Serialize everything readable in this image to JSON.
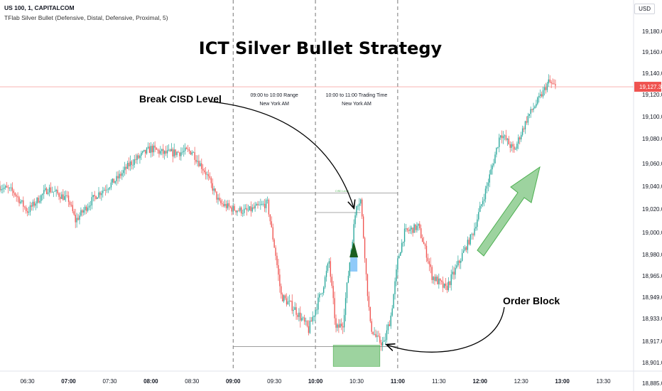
{
  "header": {
    "symbol_line": "US 100, 1, CAPITALCOM",
    "indicator_line": "TFlab Silver Bullet (Defensive, Distal, Defensive, Proximal, 5)"
  },
  "currency_button": "USD",
  "chart_data": {
    "type": "candlestick",
    "title": "ICT Silver Bullet Strategy",
    "x_ticks": [
      "06:30",
      "07:00",
      "07:30",
      "08:00",
      "08:30",
      "09:00",
      "09:30",
      "10:00",
      "10:30",
      "11:00",
      "11:30",
      "12:00",
      "12:30",
      "13:00",
      "13:30"
    ],
    "x_bold_ticks": [
      "07:00",
      "08:00",
      "09:00",
      "10:00",
      "11:00",
      "12:00",
      "13:00"
    ],
    "x_range": [
      "06:10",
      "13:52"
    ],
    "y_ticks": [
      19180.0,
      19160.0,
      19140.0,
      19120.0,
      19100.0,
      19080.0,
      19060.0,
      19040.0,
      19020.0,
      19000.0,
      18980.0,
      18965.0,
      18949.0,
      18933.0,
      18917.0,
      18901.0,
      18885.0
    ],
    "y_ticks_label": [
      "19,180.0",
      "19,160.0",
      "19,140.0",
      "19,120.0",
      "19,100.0",
      "19,080.0",
      "19,060.0",
      "19,040.0",
      "19,020.0",
      "19,000.0",
      "18,980.0",
      "18,965.0",
      "18,949.0",
      "18,933.0",
      "18,917.0",
      "18,901.0",
      "18,885.0"
    ],
    "last_price": 19127.3,
    "last_price_label": "19,127.3",
    "colors": {
      "up": "#26a69a",
      "down": "#ef5350",
      "accent_green": "#4caf50",
      "price_line": "#ef5350"
    },
    "session_lines": [
      "09:00",
      "10:00",
      "11:00"
    ],
    "sessions": [
      {
        "label": "09:00 to 10:00 Range",
        "sub": "New York AM"
      },
      {
        "label": "10:00 to 11:00 Trading Time",
        "sub": "New York AM"
      }
    ],
    "range_high": 19034,
    "range_low": 18913,
    "cisd_level_label": "CISD Level",
    "order_block": {
      "from": "10:13",
      "to": "10:47",
      "top": 18914,
      "bottom": 18898
    },
    "price_path": [
      [
        "06:10",
        19040
      ],
      [
        "06:20",
        19035
      ],
      [
        "06:30",
        19018
      ],
      [
        "06:45",
        19038
      ],
      [
        "07:00",
        19028
      ],
      [
        "07:05",
        19010
      ],
      [
        "07:20",
        19032
      ],
      [
        "07:35",
        19046
      ],
      [
        "07:45",
        19060
      ],
      [
        "08:00",
        19072
      ],
      [
        "08:10",
        19068
      ],
      [
        "08:30",
        19070
      ],
      [
        "08:40",
        19052
      ],
      [
        "08:50",
        19025
      ],
      [
        "09:00",
        19020
      ],
      [
        "09:10",
        19018
      ],
      [
        "09:25",
        19025
      ],
      [
        "09:35",
        18950
      ],
      [
        "09:45",
        18940
      ],
      [
        "09:55",
        18925
      ],
      [
        "10:05",
        18955
      ],
      [
        "10:10",
        18975
      ],
      [
        "10:15",
        18925
      ],
      [
        "10:20",
        18930
      ],
      [
        "10:25",
        18975
      ],
      [
        "10:30",
        19025
      ],
      [
        "10:33",
        19028
      ],
      [
        "10:37",
        18965
      ],
      [
        "10:40",
        18928
      ],
      [
        "10:45",
        18918
      ],
      [
        "10:50",
        18915
      ],
      [
        "10:55",
        18935
      ],
      [
        "11:00",
        18975
      ],
      [
        "11:05",
        19000
      ],
      [
        "11:15",
        19005
      ],
      [
        "11:25",
        18965
      ],
      [
        "11:35",
        18955
      ],
      [
        "11:45",
        18975
      ],
      [
        "11:55",
        19000
      ],
      [
        "12:05",
        19040
      ],
      [
        "12:15",
        19085
      ],
      [
        "12:25",
        19070
      ],
      [
        "12:35",
        19100
      ],
      [
        "12:45",
        19120
      ],
      [
        "12:50",
        19132
      ],
      [
        "12:55",
        19127
      ]
    ],
    "annotations": [
      {
        "text": "Break CISD Level"
      },
      {
        "text": "Order Block"
      }
    ]
  }
}
